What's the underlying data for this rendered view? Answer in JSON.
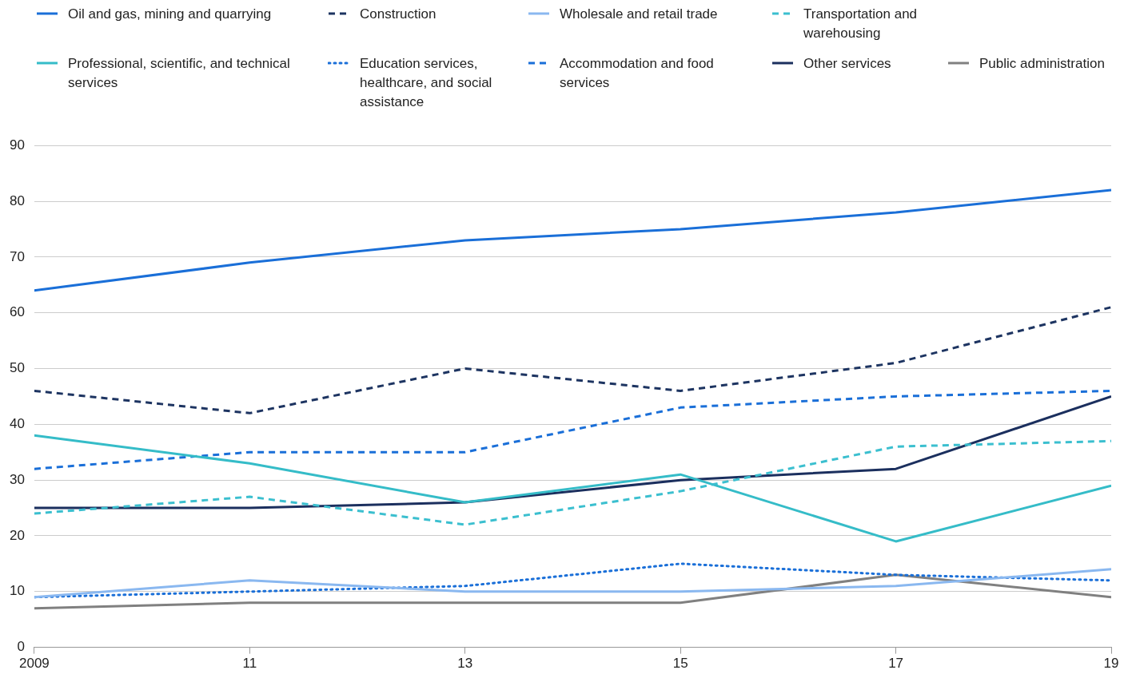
{
  "chart_data": {
    "type": "line",
    "x": [
      2009,
      2011,
      2013,
      2015,
      2017,
      2019
    ],
    "xlim": [
      2009,
      2019
    ],
    "xticks": [
      2009,
      {
        "value": 2011,
        "label": "11"
      },
      {
        "value": 2013,
        "label": "13"
      },
      {
        "value": 2015,
        "label": "15"
      },
      {
        "value": 2017,
        "label": "17"
      },
      {
        "value": 2019,
        "label": "19"
      }
    ],
    "ylim": [
      0,
      90
    ],
    "yticks": [
      0,
      10,
      20,
      30,
      40,
      50,
      60,
      70,
      80,
      90
    ],
    "grid": "y",
    "legend": "top",
    "marker": "none",
    "series": [
      {
        "name": "Oil and gas, mining and quarrying",
        "color": "#1a6fd8",
        "line_style": "solid",
        "values": [
          64,
          69,
          73,
          75,
          78,
          82
        ]
      },
      {
        "name": "Construction",
        "color": "#1d3461",
        "line_style": "dashed",
        "values": [
          46,
          42,
          50,
          46,
          51,
          61
        ]
      },
      {
        "name": "Wholesale and retail trade",
        "color": "#8ab8f0",
        "line_style": "solid",
        "values": [
          9,
          12,
          10,
          10,
          11,
          14
        ]
      },
      {
        "name": "Transportation and warehousing",
        "color": "#3bbfcf",
        "line_style": "dashed",
        "values": [
          24,
          27,
          22,
          28,
          36,
          37
        ]
      },
      {
        "name": "Professional, scientific, and technical services",
        "color": "#35bcc8",
        "line_style": "solid",
        "values": [
          38,
          33,
          26,
          31,
          19,
          29
        ]
      },
      {
        "name": "Education services, healthcare, and social assistance",
        "color": "#1a6fd8",
        "line_style": "dotted",
        "values": [
          9,
          10,
          11,
          15,
          13,
          12
        ]
      },
      {
        "name": "Accommodation and food services",
        "color": "#1a6fd8",
        "line_style": "dashed",
        "values": [
          32,
          35,
          35,
          43,
          45,
          46
        ]
      },
      {
        "name": "Other services",
        "color": "#1b2f5e",
        "line_style": "solid",
        "values": [
          25,
          25,
          26,
          30,
          32,
          45
        ]
      },
      {
        "name": "Public administration",
        "color": "#808080",
        "line_style": "solid",
        "values": [
          7,
          8,
          8,
          8,
          13,
          9
        ]
      }
    ]
  }
}
